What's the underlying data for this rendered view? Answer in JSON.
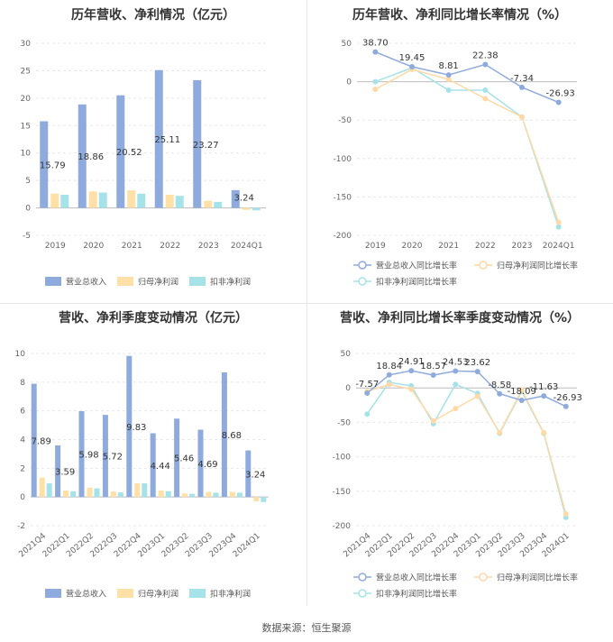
{
  "source": "数据来源：恒生聚源",
  "colors": {
    "rev": "#8faadc",
    "net": "#ffe0a6",
    "ded": "#a6e3e9",
    "lineRev": "#8faadc",
    "lineNet": "#ffd9a6",
    "lineDed": "#a6e3e9"
  },
  "chart_data": [
    {
      "type": "bar",
      "title": "历年营收、净利情况（亿元）",
      "categories": [
        "2019",
        "2020",
        "2021",
        "2022",
        "2023",
        "2024Q1"
      ],
      "ylim": [
        -5,
        30
      ],
      "yticks": [
        -5,
        0,
        5,
        10,
        15,
        20,
        25,
        30
      ],
      "series": [
        {
          "name": "营业总收入",
          "values": [
            15.79,
            18.86,
            20.52,
            25.11,
            23.27,
            3.24
          ]
        },
        {
          "name": "归母净利润",
          "values": [
            2.6,
            3.0,
            3.2,
            2.4,
            1.3,
            -0.35
          ]
        },
        {
          "name": "扣非净利润",
          "values": [
            2.4,
            2.8,
            2.6,
            2.2,
            1.1,
            -0.45
          ]
        }
      ],
      "data_labels": [
        "15.79",
        "18.86",
        "20.52",
        "25.11",
        "23.27",
        "3.24"
      ]
    },
    {
      "type": "line",
      "title": "历年营收、净利同比增长率情况（%）",
      "categories": [
        "2019",
        "2020",
        "2021",
        "2022",
        "2023",
        "2024Q1"
      ],
      "ylim": [
        -200,
        50
      ],
      "yticks": [
        -200,
        -150,
        -100,
        -50,
        0,
        50
      ],
      "series": [
        {
          "name": "营业总收入同比增长率",
          "values": [
            38.7,
            19.45,
            8.81,
            22.38,
            -7.34,
            -26.93
          ]
        },
        {
          "name": "归母净利润同比增长率",
          "values": [
            -10,
            16,
            3,
            -22,
            -46,
            -183
          ]
        },
        {
          "name": "扣非净利润同比增长率",
          "values": [
            0,
            18,
            -11,
            -11,
            -46,
            -189
          ]
        }
      ],
      "data_labels": [
        "38.70",
        "19.45",
        "8.81",
        "22.38",
        "-7.34",
        "-26.93"
      ]
    },
    {
      "type": "bar",
      "title": "营收、净利季度变动情况（亿元）",
      "categories": [
        "2021Q4",
        "2022Q1",
        "2022Q2",
        "2022Q3",
        "2022Q4",
        "2023Q1",
        "2023Q2",
        "2023Q3",
        "2023Q4",
        "2024Q1"
      ],
      "ylim": [
        -2,
        10
      ],
      "yticks": [
        -2,
        0,
        2,
        4,
        6,
        8,
        10
      ],
      "series": [
        {
          "name": "营业总收入",
          "values": [
            7.89,
            3.59,
            5.98,
            5.72,
            9.83,
            4.44,
            5.46,
            4.69,
            8.68,
            3.24
          ]
        },
        {
          "name": "归母净利润",
          "values": [
            1.35,
            0.45,
            0.65,
            0.38,
            0.95,
            0.45,
            0.25,
            0.35,
            0.35,
            -0.3
          ]
        },
        {
          "name": "扣非净利润",
          "values": [
            0.95,
            0.4,
            0.6,
            0.32,
            0.95,
            0.4,
            0.22,
            0.3,
            0.3,
            -0.35
          ]
        }
      ],
      "data_labels": [
        "7.89",
        "3.59",
        "5.98",
        "5.72",
        "9.83",
        "4.44",
        "5.46",
        "4.69",
        "8.68",
        "3.24"
      ]
    },
    {
      "type": "line",
      "title": "营收、净利同比增长率季度变动情况（%）",
      "categories": [
        "2021Q4",
        "2022Q1",
        "2022Q2",
        "2022Q3",
        "2022Q4",
        "2023Q1",
        "2023Q2",
        "2023Q3",
        "2023Q4",
        "2024Q1"
      ],
      "ylim": [
        -200,
        50
      ],
      "yticks": [
        -200,
        -150,
        -100,
        -50,
        0,
        50
      ],
      "series": [
        {
          "name": "营业总收入同比增长率",
          "values": [
            -7.57,
            18.84,
            24.91,
            18.57,
            24.53,
            23.62,
            -8.58,
            -18.09,
            -11.63,
            -26.93
          ]
        },
        {
          "name": "归母净利润同比增长率",
          "values": [
            -5,
            5,
            -2,
            -48,
            -30,
            -12,
            -65,
            -3,
            -65,
            -183
          ]
        },
        {
          "name": "扣非净利润同比增长率",
          "values": [
            -38,
            8,
            3,
            -52,
            5,
            -8,
            -66,
            -5,
            -66,
            -188
          ]
        }
      ],
      "data_labels": [
        "-7.57",
        "18.84",
        "24.91",
        "18.57",
        "24.53",
        "23.62",
        "-8.58",
        "-18.09",
        "-11.63",
        "-26.93"
      ]
    }
  ]
}
